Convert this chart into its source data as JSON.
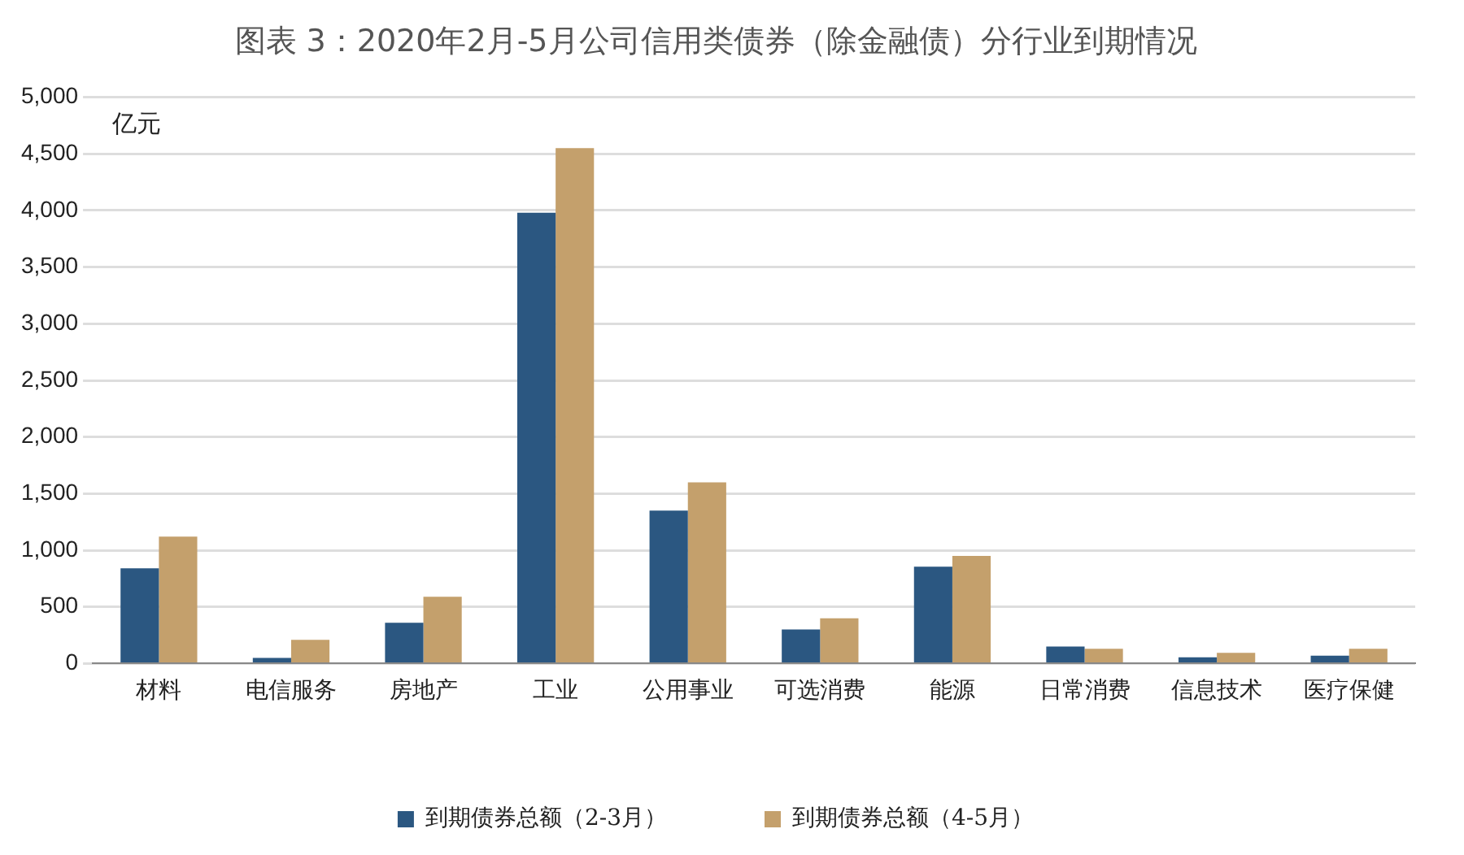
{
  "chart_data": {
    "type": "bar",
    "title": "图表 3：2020年2月-5月公司信用类债券（除金融债）分行业到期情况",
    "ylabel": "亿元",
    "categories": [
      "材料",
      "电信服务",
      "房地产",
      "工业",
      "公用事业",
      "可选消费",
      "能源",
      "日常消费",
      "信息技术",
      "医疗保健"
    ],
    "series": [
      {
        "name": "到期债券总额（2-3月）",
        "color": "#2b5781",
        "values": [
          840,
          50,
          360,
          3980,
          1350,
          300,
          855,
          150,
          55,
          70
        ]
      },
      {
        "name": "到期债券总额（4-5月）",
        "color": "#c4a06c",
        "values": [
          1120,
          210,
          590,
          4550,
          1600,
          400,
          950,
          130,
          95,
          130
        ]
      }
    ],
    "ylim": [
      0,
      5000
    ],
    "yticks": [
      0,
      500,
      {
        "value": 1000,
        "label": "1,000"
      },
      {
        "value": 1500,
        "label": "1,500"
      },
      {
        "value": 2000,
        "label": "2,000"
      },
      {
        "value": 2500,
        "label": "2,500"
      },
      {
        "value": 3000,
        "label": "3,000"
      },
      {
        "value": 3500,
        "label": "3,500"
      },
      {
        "value": 4000,
        "label": "4,000"
      },
      {
        "value": 4500,
        "label": "4,500"
      },
      {
        "value": 5000,
        "label": "5,000"
      }
    ],
    "grid": "y",
    "legend": "bottom"
  }
}
